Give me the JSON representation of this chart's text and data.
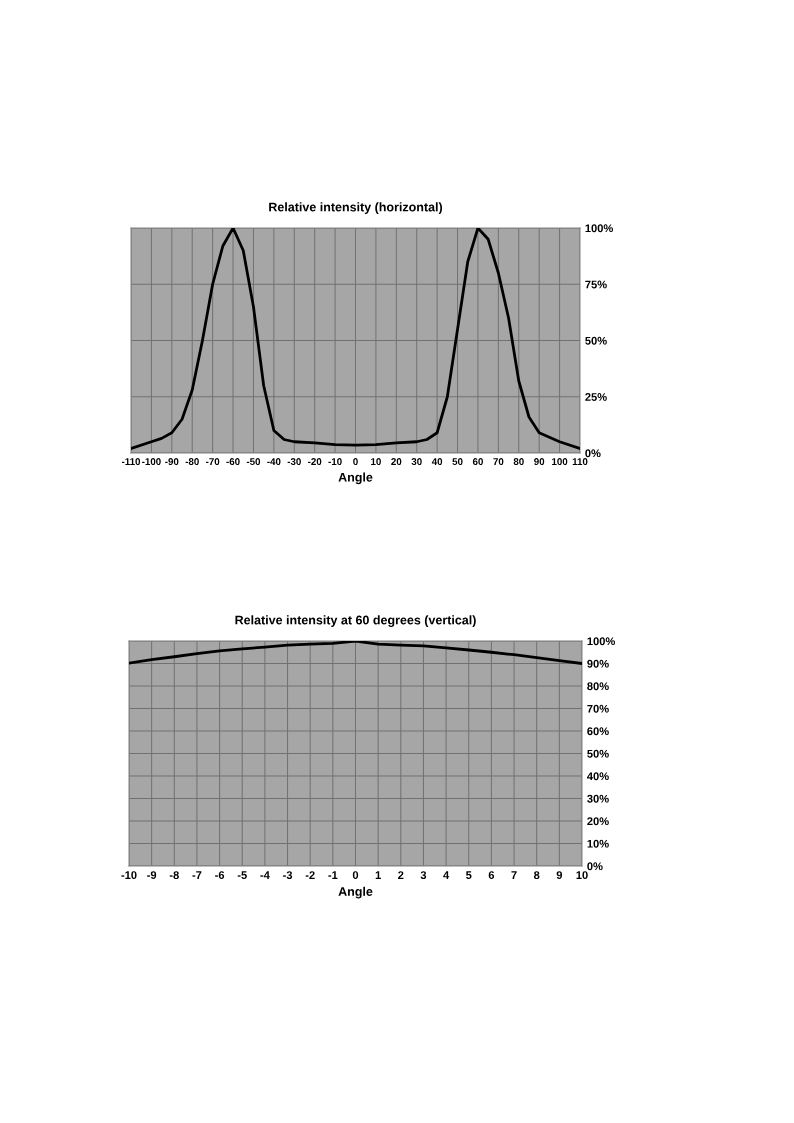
{
  "chart_data": [
    {
      "type": "line",
      "title": "Relative intensity (horizontal)",
      "xlabel": "Angle",
      "x": [
        -110,
        -100,
        -95,
        -90,
        -85,
        -80,
        -75,
        -70,
        -65,
        -60,
        -55,
        -50,
        -45,
        -40,
        -35,
        -30,
        -20,
        -10,
        0,
        10,
        20,
        30,
        35,
        40,
        45,
        50,
        55,
        60,
        65,
        70,
        75,
        80,
        85,
        90,
        95,
        100,
        110
      ],
      "series": [
        {
          "color": "#000000",
          "values": [
            2,
            5,
            6.5,
            9,
            15,
            28,
            50,
            75,
            92,
            100,
            90,
            65,
            30,
            10,
            6,
            5,
            4.5,
            3.7,
            3.5,
            3.7,
            4.5,
            5,
            6,
            9,
            25,
            55,
            85,
            100,
            95,
            80,
            60,
            32,
            16,
            9,
            7,
            5,
            2
          ]
        }
      ],
      "xlim": [
        -110,
        110
      ],
      "xticks": [
        -110,
        -100,
        -90,
        -80,
        -70,
        -60,
        -50,
        -40,
        -30,
        -20,
        -10,
        0,
        10,
        20,
        30,
        40,
        50,
        60,
        70,
        80,
        90,
        100,
        110
      ],
      "ylim": [
        0,
        100
      ],
      "yticks": [
        {
          "value": 0,
          "label": "0%"
        },
        {
          "value": 25,
          "label": "25%"
        },
        {
          "value": 50,
          "label": "50%"
        },
        {
          "value": 75,
          "label": "75%"
        },
        {
          "value": 100,
          "label": "100%"
        }
      ],
      "grid": true,
      "marker": "none",
      "line_style": "solid"
    },
    {
      "type": "line",
      "title": "Relative intensity at 60 degrees (vertical)",
      "xlabel": "Angle",
      "x": [
        -10,
        -9,
        -8,
        -7,
        -6,
        -5,
        -4,
        -3,
        -2,
        -1,
        0,
        1,
        2,
        3,
        4,
        5,
        6,
        7,
        8,
        9,
        10
      ],
      "series": [
        {
          "color": "#000000",
          "values": [
            90.2,
            91.7,
            93,
            94.4,
            95.6,
            96.5,
            97.3,
            98.2,
            98.6,
            98.9,
            100,
            98.6,
            98.2,
            97.8,
            96.9,
            96,
            95,
            93.9,
            92.6,
            91.3,
            90
          ]
        }
      ],
      "xlim": [
        -10,
        10
      ],
      "xticks": [
        -10,
        -9,
        -8,
        -7,
        -6,
        -5,
        -4,
        -3,
        -2,
        -1,
        0,
        1,
        2,
        3,
        4,
        5,
        6,
        7,
        8,
        9,
        10
      ],
      "ylim": [
        0,
        100
      ],
      "yticks": [
        {
          "value": 0,
          "label": "0%"
        },
        {
          "value": 10,
          "label": "10%"
        },
        {
          "value": 20,
          "label": "20%"
        },
        {
          "value": 30,
          "label": "30%"
        },
        {
          "value": 40,
          "label": "40%"
        },
        {
          "value": 50,
          "label": "50%"
        },
        {
          "value": 60,
          "label": "60%"
        },
        {
          "value": 70,
          "label": "70%"
        },
        {
          "value": 80,
          "label": "80%"
        },
        {
          "value": 90,
          "label": "90%"
        },
        {
          "value": 100,
          "label": "100%"
        }
      ],
      "grid": true,
      "marker": "none",
      "line_style": "solid"
    }
  ]
}
